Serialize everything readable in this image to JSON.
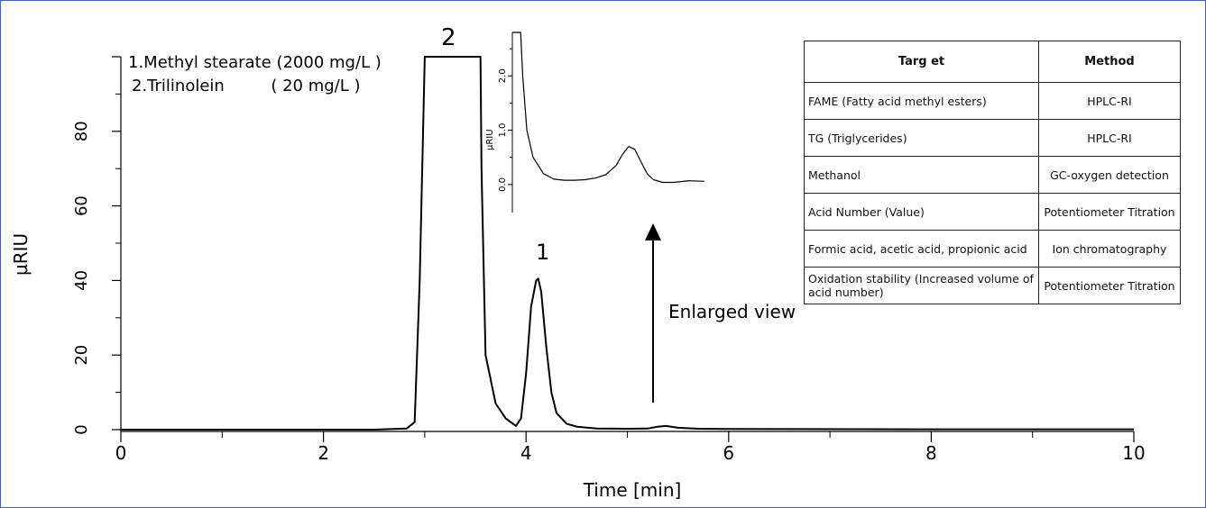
{
  "chart_data": [
    {
      "type": "line",
      "xlabel": "Time [min]",
      "ylabel": "µRIU",
      "xlim": [
        0,
        10
      ],
      "ylim": [
        0,
        100
      ],
      "x_ticks": [
        "0",
        "2",
        "4",
        "6",
        "8",
        "10"
      ],
      "y_ticks": [
        "0",
        "20",
        "40",
        "60",
        "80"
      ],
      "grid": false,
      "legend": [
        "1.Methyl stearate (2000 mg/L )",
        "2.Trilinolein         ( 20 mg/L )"
      ],
      "peak_labels": [
        {
          "label": "1",
          "x": 4.12,
          "y": 40.5
        },
        {
          "label": "2",
          "x": 3.25,
          "y": 100
        }
      ],
      "series": [
        {
          "x": [
            0,
            2.5,
            2.82,
            2.9,
            2.95,
            3.0,
            3.55,
            3.56,
            3.6,
            3.7,
            3.8,
            3.9,
            3.95,
            4.0,
            4.05,
            4.1,
            4.12,
            4.15,
            4.2,
            4.25,
            4.3,
            4.4,
            4.5,
            4.7,
            5.0,
            5.2,
            5.3,
            5.38,
            5.5,
            5.7,
            6.0,
            8.0,
            10.0
          ],
          "values": [
            0,
            0,
            0.3,
            2,
            40,
            100,
            100,
            70,
            20,
            7,
            3,
            1,
            3,
            15,
            33,
            40,
            40.5,
            37,
            22,
            10,
            4.5,
            1.6,
            0.8,
            0.3,
            0.25,
            0.3,
            0.8,
            1.0,
            0.5,
            0.25,
            0.2,
            0.1,
            0.1
          ]
        }
      ],
      "annotation": "Enlarged view"
    },
    {
      "type": "line",
      "title": "",
      "ylabel": "µRIU",
      "ylim": [
        -0.3,
        2.8
      ],
      "y_ticks": [
        "0.0",
        "1.0",
        "2.0"
      ],
      "series": [
        {
          "x": [
            0,
            0.08,
            0.1,
            0.14,
            0.2,
            0.3,
            0.4,
            0.5,
            0.6,
            0.7,
            0.8,
            0.9,
            1.0,
            1.06,
            1.12,
            1.18,
            1.24,
            1.3,
            1.36,
            1.45,
            1.55,
            1.7,
            1.85
          ],
          "values": [
            2.8,
            2.8,
            2.0,
            1.0,
            0.5,
            0.2,
            0.1,
            0.08,
            0.08,
            0.09,
            0.12,
            0.18,
            0.35,
            0.55,
            0.7,
            0.65,
            0.42,
            0.2,
            0.09,
            0.04,
            0.04,
            0.07,
            0.06
          ]
        }
      ]
    }
  ],
  "table": {
    "headers": [
      "Targ et",
      "Method"
    ],
    "rows": [
      [
        "FAME (Fatty acid methyl esters)",
        "HPLC-RI"
      ],
      [
        "TG (Triglycerides)",
        "HPLC-RI"
      ],
      [
        "Methanol",
        "GC-oxygen detection"
      ],
      [
        "Acid Number (Value)",
        "Potentiometer Titration"
      ],
      [
        "Formic acid, acetic acid, propionic acid",
        "Ion chromatography"
      ],
      [
        "Oxidation stability (Increased volume of acid number)",
        "Potentiometer Titration"
      ]
    ]
  }
}
